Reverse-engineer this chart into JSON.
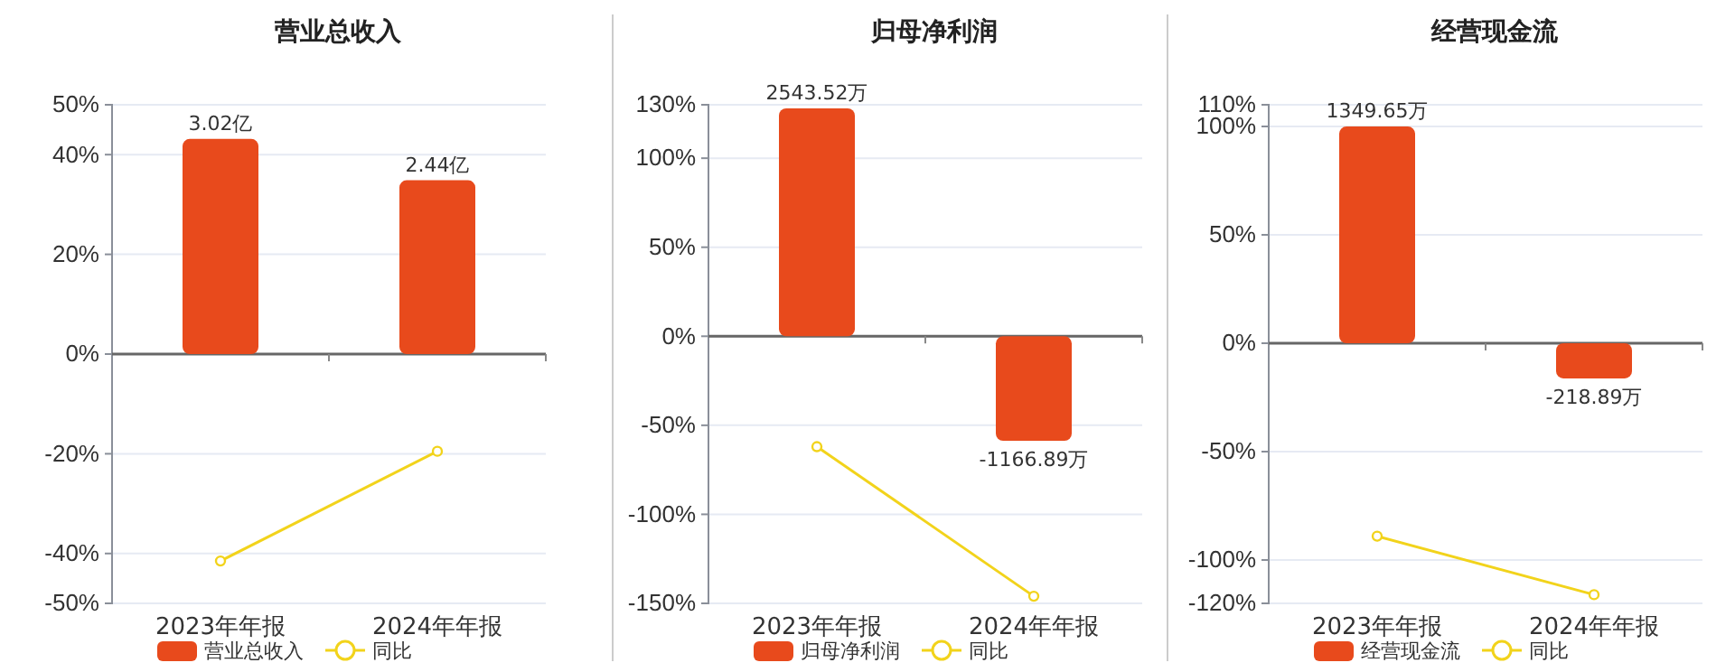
{
  "chart_data": [
    {
      "type": "bar",
      "title": "营业总收入",
      "categories": [
        "2023年年报",
        "2024年年报"
      ],
      "ylim": [
        -50,
        50
      ],
      "yticks": [
        {
          "value": 50,
          "label": "50%"
        },
        {
          "value": 40,
          "label": "40%"
        },
        {
          "value": 20,
          "label": "20%"
        },
        {
          "value": 0,
          "label": "0%"
        },
        {
          "value": -20,
          "label": "-20%"
        },
        {
          "value": -40,
          "label": "-40%"
        },
        {
          "value": -50,
          "label": "-50%"
        }
      ],
      "y2lim": [
        -3.5,
        3.5
      ],
      "grid": "y",
      "legend": "bottom",
      "marker": "circle",
      "series": [
        {
          "name": "营业总收入",
          "type": "bar",
          "axis": "y2",
          "color": "#e84a1c",
          "values": [
            3.02,
            2.44
          ],
          "value_labels": [
            "3.02亿",
            "2.44亿"
          ]
        },
        {
          "name": "同比",
          "type": "line",
          "color": "#f2d31b",
          "values": [
            -41.5,
            -19.5
          ]
        }
      ]
    },
    {
      "type": "bar",
      "title": "归母净利润",
      "categories": [
        "2023年年报",
        "2024年年报"
      ],
      "ylim": [
        -150,
        130
      ],
      "yticks": [
        {
          "value": 130,
          "label": "130%"
        },
        {
          "value": 100,
          "label": "100%"
        },
        {
          "value": 50,
          "label": "50%"
        },
        {
          "value": 0,
          "label": "0%"
        },
        {
          "value": -50,
          "label": "-50%"
        },
        {
          "value": -100,
          "label": "-100%"
        },
        {
          "value": -150,
          "label": "-150%"
        }
      ],
      "y2lim": [
        -2980,
        2583
      ],
      "grid": "y",
      "legend": "bottom",
      "marker": "circle",
      "series": [
        {
          "name": "归母净利润",
          "type": "bar",
          "axis": "y2",
          "color": "#e84a1c",
          "values": [
            2543.52,
            -1166.89
          ],
          "value_labels": [
            "2543.52万",
            "-1166.89万"
          ]
        },
        {
          "name": "同比",
          "type": "line",
          "color": "#f2d31b",
          "values": [
            -62,
            -146
          ]
        }
      ]
    },
    {
      "type": "bar",
      "title": "经营现金流",
      "categories": [
        "2023年年报",
        "2024年年报"
      ],
      "ylim": [
        -120,
        110
      ],
      "yticks": [
        {
          "value": 110,
          "label": "110%"
        },
        {
          "value": 100,
          "label": "100%"
        },
        {
          "value": 50,
          "label": "50%"
        },
        {
          "value": 0,
          "label": "0%"
        },
        {
          "value": -50,
          "label": "-50%"
        },
        {
          "value": -100,
          "label": "-100%"
        },
        {
          "value": -120,
          "label": "-120%"
        }
      ],
      "y2lim": [
        -1620,
        1485
      ],
      "grid": "y",
      "legend": "bottom",
      "marker": "circle",
      "series": [
        {
          "name": "经营现金流",
          "type": "bar",
          "axis": "y2",
          "color": "#e84a1c",
          "values": [
            1349.65,
            -218.89
          ],
          "value_labels": [
            "1349.65万",
            "-218.89万"
          ]
        },
        {
          "name": "同比",
          "type": "line",
          "color": "#f2d31b",
          "values": [
            -89,
            -116
          ]
        }
      ]
    }
  ]
}
